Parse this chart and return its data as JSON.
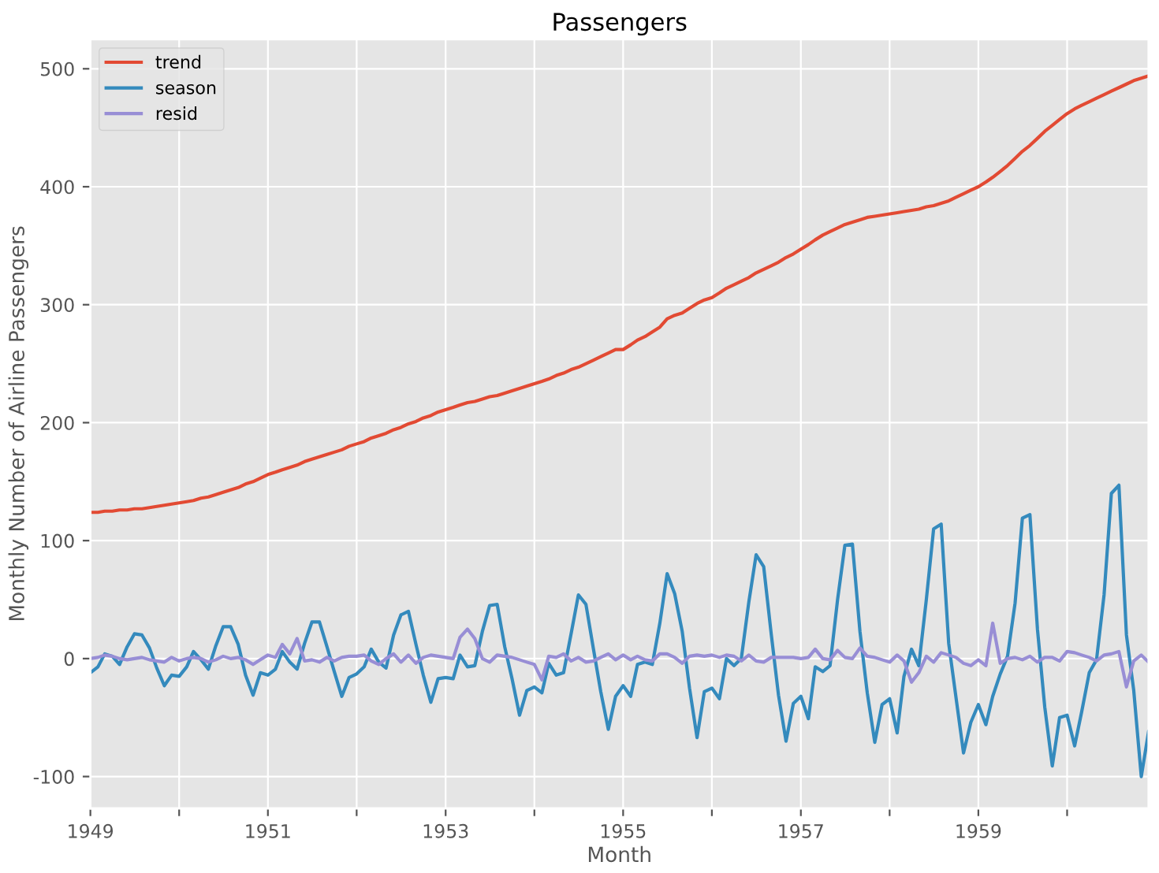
{
  "chart_data": {
    "type": "line",
    "title": "Passengers",
    "xlabel": "Month",
    "ylabel": "Monthly Number of Airline Passengers",
    "x": [
      "1949-01",
      "1949-02",
      "1949-03",
      "1949-04",
      "1949-05",
      "1949-06",
      "1949-07",
      "1949-08",
      "1949-09",
      "1949-10",
      "1949-11",
      "1949-12",
      "1950-01",
      "1950-02",
      "1950-03",
      "1950-04",
      "1950-05",
      "1950-06",
      "1950-07",
      "1950-08",
      "1950-09",
      "1950-10",
      "1950-11",
      "1950-12",
      "1951-01",
      "1951-02",
      "1951-03",
      "1951-04",
      "1951-05",
      "1951-06",
      "1951-07",
      "1951-08",
      "1951-09",
      "1951-10",
      "1951-11",
      "1951-12",
      "1952-01",
      "1952-02",
      "1952-03",
      "1952-04",
      "1952-05",
      "1952-06",
      "1952-07",
      "1952-08",
      "1952-09",
      "1952-10",
      "1952-11",
      "1952-12",
      "1953-01",
      "1953-02",
      "1953-03",
      "1953-04",
      "1953-05",
      "1953-06",
      "1953-07",
      "1953-08",
      "1953-09",
      "1953-10",
      "1953-11",
      "1953-12",
      "1954-01",
      "1954-02",
      "1954-03",
      "1954-04",
      "1954-05",
      "1954-06",
      "1954-07",
      "1954-08",
      "1954-09",
      "1954-10",
      "1954-11",
      "1954-12",
      "1955-01",
      "1955-02",
      "1955-03",
      "1955-04",
      "1955-05",
      "1955-06",
      "1955-07",
      "1955-08",
      "1955-09",
      "1955-10",
      "1955-11",
      "1955-12",
      "1956-01",
      "1956-02",
      "1956-03",
      "1956-04",
      "1956-05",
      "1956-06",
      "1956-07",
      "1956-08",
      "1956-09",
      "1956-10",
      "1956-11",
      "1956-12",
      "1957-01",
      "1957-02",
      "1957-03",
      "1957-04",
      "1957-05",
      "1957-06",
      "1957-07",
      "1957-08",
      "1957-09",
      "1957-10",
      "1957-11",
      "1957-12",
      "1958-01",
      "1958-02",
      "1958-03",
      "1958-04",
      "1958-05",
      "1958-06",
      "1958-07",
      "1958-08",
      "1958-09",
      "1958-10",
      "1958-11",
      "1958-12",
      "1959-01",
      "1959-02",
      "1959-03",
      "1959-04",
      "1959-05",
      "1959-06",
      "1959-07",
      "1959-08",
      "1959-09",
      "1959-10",
      "1959-11",
      "1959-12",
      "1960-01",
      "1960-02",
      "1960-03",
      "1960-04",
      "1960-05",
      "1960-06",
      "1960-07",
      "1960-08",
      "1960-09",
      "1960-10",
      "1960-11",
      "1960-12"
    ],
    "series": [
      {
        "name": "trend",
        "color": "#e24a33",
        "values": [
          124,
          124,
          125,
          125,
          126,
          126,
          127,
          127,
          128,
          129,
          130,
          131,
          132,
          133,
          134,
          136,
          137,
          139,
          141,
          143,
          145,
          148,
          150,
          153,
          156,
          158,
          160,
          162,
          164,
          167,
          169,
          171,
          173,
          175,
          177,
          180,
          182,
          184,
          187,
          189,
          191,
          194,
          196,
          199,
          201,
          204,
          206,
          209,
          211,
          213,
          215,
          217,
          218,
          220,
          222,
          223,
          225,
          227,
          229,
          231,
          233,
          235,
          237,
          240,
          242,
          245,
          247,
          250,
          253,
          256,
          259,
          262,
          262,
          266,
          270,
          273,
          277,
          281,
          288,
          291,
          293,
          297,
          301,
          304,
          306,
          310,
          314,
          317,
          320,
          323,
          327,
          330,
          333,
          336,
          340,
          343,
          347,
          351,
          355,
          359,
          362,
          365,
          368,
          370,
          372,
          374,
          375,
          376,
          377,
          378,
          379,
          380,
          381,
          383,
          384,
          386,
          388,
          391,
          394,
          397,
          400,
          404,
          408,
          413,
          418,
          424,
          430,
          435,
          441,
          447,
          452,
          457,
          462,
          466,
          469,
          472,
          475,
          478,
          481,
          484,
          487,
          490,
          492,
          494
        ]
      },
      {
        "name": "season",
        "color": "#348abd",
        "values": [
          -12,
          -7,
          4,
          2,
          -5,
          10,
          21,
          20,
          9,
          -8,
          -23,
          -14,
          -15,
          -7,
          6,
          -1,
          -9,
          11,
          27,
          27,
          12,
          -14,
          -31,
          -12,
          -14,
          -9,
          6,
          -3,
          -9,
          13,
          31,
          31,
          10,
          -11,
          -32,
          -16,
          -13,
          -7,
          8,
          -3,
          -8,
          20,
          37,
          40,
          12,
          -14,
          -37,
          -17,
          -16,
          -17,
          3,
          -7,
          -6,
          23,
          45,
          46,
          10,
          -17,
          -48,
          -27,
          -24,
          -29,
          -4,
          -14,
          -12,
          21,
          54,
          46,
          8,
          -28,
          -60,
          -32,
          -23,
          -32,
          -5,
          -3,
          -5,
          30,
          72,
          55,
          23,
          -25,
          -67,
          -28,
          -25,
          -34,
          0,
          -6,
          0,
          48,
          88,
          78,
          21,
          -31,
          -70,
          -38,
          -32,
          -51,
          -7,
          -11,
          -6,
          50,
          96,
          97,
          23,
          -29,
          -71,
          -39,
          -34,
          -63,
          -15,
          8,
          -6,
          50,
          110,
          114,
          13,
          -33,
          -80,
          -54,
          -39,
          -56,
          -32,
          -13,
          2,
          47,
          119,
          122,
          25,
          -41,
          -91,
          -50,
          -48,
          -74,
          -45,
          -12,
          -1,
          54,
          140,
          147,
          20,
          -27,
          -100,
          -62
        ]
      },
      {
        "name": "resid",
        "color": "#988ed5",
        "values": [
          0,
          1,
          3,
          2,
          0,
          -1,
          0,
          1,
          -1,
          -2,
          -3,
          1,
          -2,
          0,
          1,
          0,
          -3,
          -1,
          2,
          0,
          1,
          -1,
          -5,
          -1,
          3,
          1,
          12,
          4,
          17,
          -2,
          -1,
          -3,
          1,
          -2,
          1,
          2,
          2,
          3,
          -2,
          -5,
          0,
          4,
          -3,
          3,
          -4,
          1,
          3,
          2,
          1,
          0,
          18,
          25,
          17,
          0,
          -3,
          3,
          2,
          1,
          -1,
          -3,
          -5,
          -18,
          2,
          1,
          4,
          -2,
          1,
          -3,
          -2,
          1,
          4,
          -1,
          3,
          -1,
          2,
          -1,
          -2,
          4,
          4,
          1,
          -4,
          2,
          3,
          2,
          3,
          1,
          3,
          2,
          -2,
          3,
          -2,
          -3,
          1,
          1,
          1,
          1,
          0,
          1,
          8,
          0,
          -1,
          7,
          1,
          0,
          9,
          2,
          1,
          -1,
          -3,
          3,
          -2,
          -20,
          -12,
          2,
          -3,
          5,
          3,
          1,
          -4,
          -6,
          -1,
          -6,
          30,
          -4,
          0,
          1,
          -1,
          2,
          -3,
          1,
          1,
          -2,
          6,
          5,
          3,
          1,
          -2,
          3,
          4,
          6,
          -24,
          -2,
          3,
          -3
        ]
      }
    ],
    "xlim": [
      "1949-01",
      "1960-12"
    ],
    "xticks": [
      {
        "value": "1949-01",
        "label": "1949"
      },
      {
        "value": "1950-01",
        "label": null
      },
      {
        "value": "1951-01",
        "label": "1951"
      },
      {
        "value": "1952-01",
        "label": null
      },
      {
        "value": "1953-01",
        "label": "1953"
      },
      {
        "value": "1954-01",
        "label": null
      },
      {
        "value": "1955-01",
        "label": "1955"
      },
      {
        "value": "1956-01",
        "label": null
      },
      {
        "value": "1957-01",
        "label": "1957"
      },
      {
        "value": "1958-01",
        "label": null
      },
      {
        "value": "1959-01",
        "label": "1959"
      },
      {
        "value": "1960-01",
        "label": null
      }
    ],
    "ylim": [
      -127,
      525
    ],
    "yticks": [
      -100,
      0,
      100,
      200,
      300,
      400,
      500
    ],
    "grid": true,
    "legend": "top left",
    "marker": "none",
    "line_style": "solid"
  }
}
